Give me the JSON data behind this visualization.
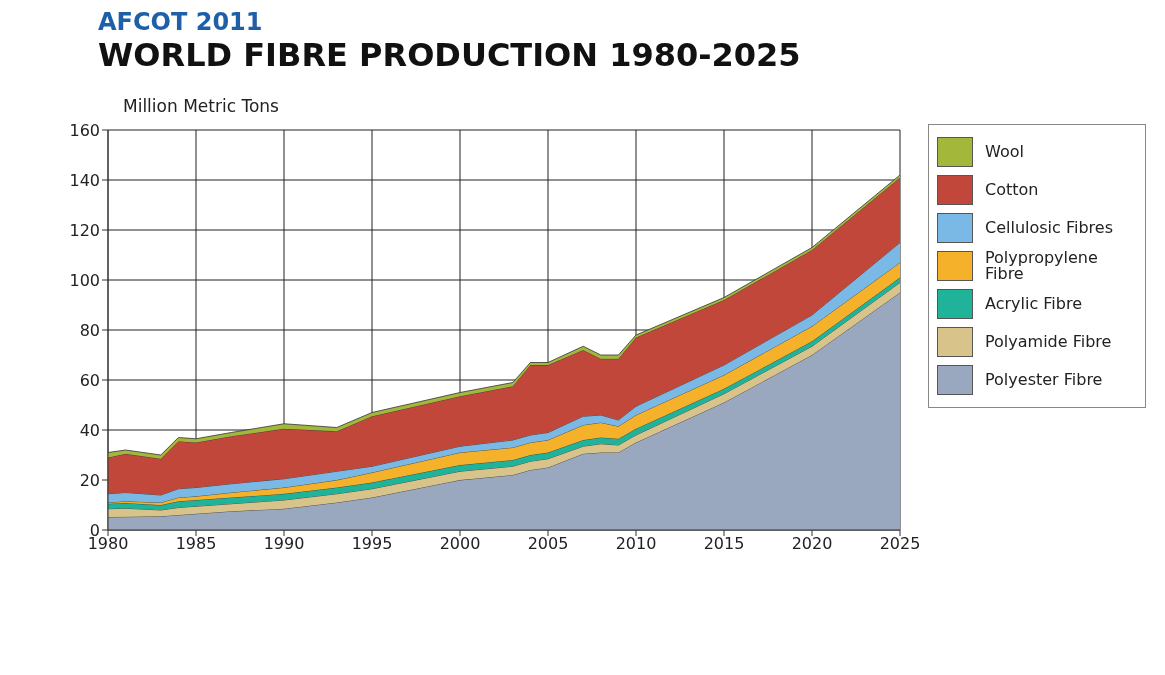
{
  "chart_data": {
    "type": "area",
    "title": "WORLD FIBRE PRODUCTION 1980-2025",
    "subtitle": "AFCOT 2011",
    "ylabel": "Million Metric Tons",
    "stacked": true,
    "grid": true,
    "legend": "right",
    "x": [
      1980,
      1981,
      1983,
      1984,
      1985,
      1987,
      1990,
      1993,
      1995,
      2000,
      2003,
      2004,
      2005,
      2007,
      2008,
      2009,
      2010,
      2015,
      2020,
      2025
    ],
    "xlim": [
      1980,
      2025
    ],
    "xticks": [
      1980,
      1985,
      1990,
      1995,
      2000,
      2005,
      2010,
      2015,
      2020,
      2025
    ],
    "ylim": [
      0,
      160
    ],
    "yticks": [
      0,
      20,
      40,
      60,
      80,
      100,
      120,
      140,
      160
    ],
    "series": [
      {
        "name": "Polyester Fibre",
        "color": "#9aa8bf",
        "values": [
          5.2,
          5.3,
          5.5,
          6,
          6.5,
          7.5,
          8.5,
          11,
          13,
          20,
          22,
          24,
          25,
          30.5,
          31,
          31,
          35,
          51,
          70,
          95
        ]
      },
      {
        "name": "Polyamide Fibre",
        "color": "#d8c38a",
        "values": [
          3.3,
          3.4,
          2.5,
          3,
          3,
          3,
          3.5,
          3.5,
          3.5,
          3.5,
          3.5,
          3.5,
          3.5,
          3,
          3.5,
          3,
          3,
          3.5,
          3.5,
          4
        ]
      },
      {
        "name": "Acrylic Fibre",
        "color": "#1fb39a",
        "values": [
          2,
          2.1,
          2,
          2.5,
          2.5,
          2.5,
          2.5,
          2.5,
          2.5,
          2.5,
          2.5,
          2.5,
          2.5,
          2.5,
          2.5,
          2.5,
          2.5,
          2,
          2,
          2
        ]
      },
      {
        "name": "Polypropylene Fibre",
        "color": "#f6b12a",
        "values": [
          0.5,
          0.7,
          1,
          1.5,
          1.5,
          2,
          2.5,
          3,
          4,
          5,
          5,
          5,
          5,
          6,
          6,
          5,
          5.5,
          5.5,
          6,
          6
        ]
      },
      {
        "name": "Cellulosic Fibres",
        "color": "#7ab8e6",
        "values": [
          3.5,
          3.5,
          3,
          3.5,
          3.5,
          3.5,
          3.5,
          3.5,
          2.5,
          2.5,
          3,
          3,
          3,
          3.5,
          3,
          2.5,
          3.5,
          4,
          4.5,
          8
        ]
      },
      {
        "name": "Cotton",
        "color": "#c0473a",
        "values": [
          14.5,
          15.5,
          14.5,
          19,
          18,
          19,
          20,
          16,
          20,
          20,
          21.5,
          28,
          27,
          26.5,
          22.5,
          24.5,
          27.5,
          26,
          26,
          26
        ]
      },
      {
        "name": "Wool",
        "color": "#a3b83a",
        "values": [
          2,
          1.5,
          1.5,
          1.5,
          1.5,
          1.5,
          2,
          1.5,
          1.5,
          1.5,
          1.5,
          1,
          1,
          1.5,
          1.5,
          1.5,
          1,
          1,
          1,
          1
        ]
      }
    ]
  }
}
